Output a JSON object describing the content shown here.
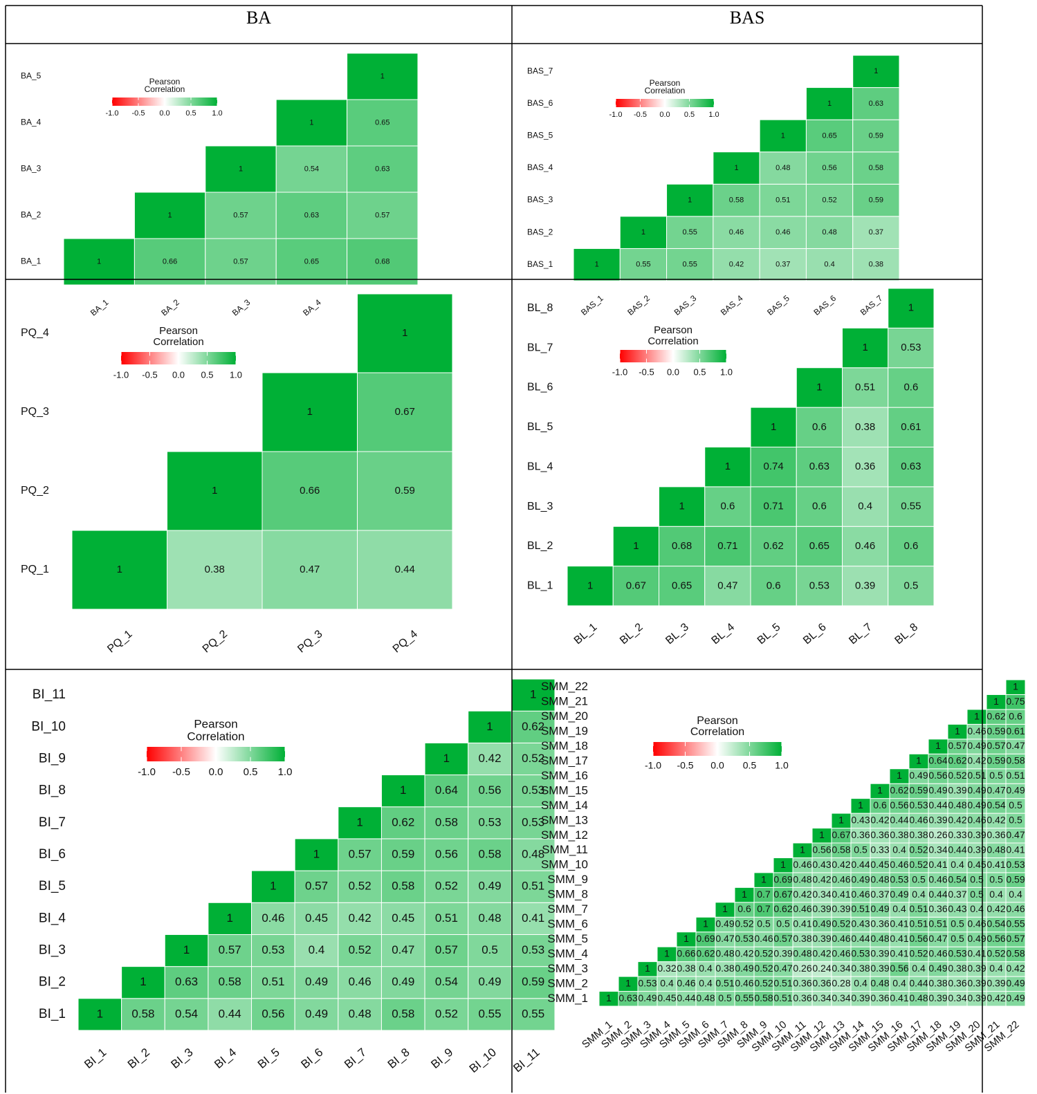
{
  "header": {
    "columns": [
      "BA",
      "BAS"
    ]
  },
  "chart_data": [
    {
      "type": "heatmap",
      "labels": [
        "BA_1",
        "BA_2",
        "BA_3",
        "BA_4",
        "BA_5"
      ],
      "values": [
        [
          1,
          0.66,
          0.57,
          0.65,
          0.68
        ],
        [
          1,
          0.57,
          0.63,
          0.57
        ],
        [
          1,
          0.54,
          0.63
        ],
        [
          1,
          0.65
        ],
        [
          1
        ]
      ],
      "legend_title": [
        "Pearson",
        "Correlation"
      ],
      "colorlim": [
        -1,
        1
      ],
      "colorscale": [
        "#ff0000",
        "#ffffff",
        "#00b036"
      ],
      "legend_ticks": [
        {
          "value": -1,
          "label": "-1.0"
        },
        -0.5,
        {
          "value": 0,
          "label": "0.0"
        },
        0.5,
        {
          "value": 1,
          "label": "1.0"
        }
      ]
    },
    {
      "type": "heatmap",
      "labels": [
        "BAS_1",
        "BAS_2",
        "BAS_3",
        "BAS_4",
        "BAS_5",
        "BAS_6",
        "BAS_7"
      ],
      "values": [
        [
          1,
          0.55,
          0.55,
          0.42,
          0.37,
          0.4,
          0.38
        ],
        [
          1,
          0.55,
          0.46,
          0.46,
          0.48,
          0.37
        ],
        [
          1,
          0.58,
          0.51,
          0.52,
          0.59
        ],
        [
          1,
          0.48,
          0.56,
          0.58
        ],
        [
          1,
          0.65,
          0.59
        ],
        [
          1,
          0.63
        ],
        [
          1
        ]
      ],
      "legend_title": [
        "Pearson",
        "Correlation"
      ],
      "colorlim": [
        -1,
        1
      ],
      "colorscale": [
        "#ff0000",
        "#ffffff",
        "#00b036"
      ],
      "legend_ticks": [
        {
          "value": -1,
          "label": "-1.0"
        },
        -0.5,
        {
          "value": 0,
          "label": "0.0"
        },
        0.5,
        {
          "value": 1,
          "label": "1.0"
        }
      ]
    },
    {
      "type": "heatmap",
      "labels": [
        "PQ_1",
        "PQ_2",
        "PQ_3",
        "PQ_4"
      ],
      "values": [
        [
          1,
          0.38,
          0.47,
          0.44
        ],
        [
          1,
          0.66,
          0.59
        ],
        [
          1,
          0.67
        ],
        [
          1
        ]
      ],
      "legend_title": [
        "Pearson",
        "Correlation"
      ],
      "colorlim": [
        -1,
        1
      ],
      "colorscale": [
        "#ff0000",
        "#ffffff",
        "#00b036"
      ],
      "legend_ticks": [
        {
          "value": -1,
          "label": "-1.0"
        },
        -0.5,
        {
          "value": 0,
          "label": "0.0"
        },
        0.5,
        {
          "value": 1,
          "label": "1.0"
        }
      ]
    },
    {
      "type": "heatmap",
      "labels": [
        "BL_1",
        "BL_2",
        "BL_3",
        "BL_4",
        "BL_5",
        "BL_6",
        "BL_7",
        "BL_8"
      ],
      "values": [
        [
          1,
          0.67,
          0.65,
          0.47,
          0.6,
          0.53,
          0.39,
          0.5
        ],
        [
          1,
          0.68,
          0.71,
          0.62,
          0.65,
          0.46,
          0.6
        ],
        [
          1,
          0.6,
          0.71,
          0.6,
          0.4,
          0.55
        ],
        [
          1,
          0.74,
          0.63,
          0.36,
          0.63
        ],
        [
          1,
          0.6,
          0.38,
          0.61
        ],
        [
          1,
          0.51,
          0.6
        ],
        [
          1,
          0.53
        ],
        [
          1
        ]
      ],
      "legend_title": [
        "Pearson",
        "Correlation"
      ],
      "colorlim": [
        -1,
        1
      ],
      "colorscale": [
        "#ff0000",
        "#ffffff",
        "#00b036"
      ],
      "legend_ticks": [
        {
          "value": -1,
          "label": "-1.0"
        },
        -0.5,
        {
          "value": 0,
          "label": "0.0"
        },
        0.5,
        {
          "value": 1,
          "label": "1.0"
        }
      ]
    },
    {
      "type": "heatmap",
      "labels": [
        "BI_1",
        "BI_2",
        "BI_3",
        "BI_4",
        "BI_5",
        "BI_6",
        "BI_7",
        "BI_8",
        "BI_9",
        "BI_10",
        "BI_11"
      ],
      "values": [
        [
          1,
          0.58,
          0.54,
          0.44,
          0.56,
          0.49,
          0.48,
          0.58,
          0.52,
          0.55,
          0.55
        ],
        [
          1,
          0.63,
          0.58,
          0.51,
          0.49,
          0.46,
          0.49,
          0.54,
          0.49,
          0.59
        ],
        [
          1,
          0.57,
          0.53,
          0.4,
          0.52,
          0.47,
          0.57,
          0.5,
          0.53
        ],
        [
          1,
          0.46,
          0.45,
          0.42,
          0.45,
          0.51,
          0.48,
          0.41
        ],
        [
          1,
          0.57,
          0.52,
          0.58,
          0.52,
          0.49,
          0.51
        ],
        [
          1,
          0.57,
          0.59,
          0.56,
          0.58,
          0.48
        ],
        [
          1,
          0.62,
          0.58,
          0.53,
          0.53
        ],
        [
          1,
          0.64,
          0.56,
          0.53
        ],
        [
          1,
          0.42,
          0.52
        ],
        [
          1,
          0.62
        ],
        [
          1
        ]
      ],
      "legend_title": [
        "Pearson",
        "Correlation"
      ],
      "colorlim": [
        -1,
        1
      ],
      "colorscale": [
        "#ff0000",
        "#ffffff",
        "#00b036"
      ],
      "legend_ticks": [
        {
          "value": -1,
          "label": "-1.0"
        },
        -0.5,
        {
          "value": 0,
          "label": "0.0"
        },
        0.5,
        {
          "value": 1,
          "label": "1.0"
        }
      ]
    },
    {
      "type": "heatmap",
      "labels": [
        "SMM_1",
        "SMM_2",
        "SMM_3",
        "SMM_4",
        "SMM_5",
        "SMM_6",
        "SMM_7",
        "SMM_8",
        "SMM_9",
        "SMM_10",
        "SMM_11",
        "SMM_12",
        "SMM_13",
        "SMM_14",
        "SMM_15",
        "SMM_16",
        "SMM_17",
        "SMM_18",
        "SMM_19",
        "SMM_20",
        "SMM_21",
        "SMM_22"
      ],
      "values": [
        [
          1,
          0.63,
          0.49,
          0.45,
          0.44,
          0.48,
          0.5,
          0.55,
          0.58,
          0.51,
          0.36,
          0.34,
          0.34,
          0.39,
          0.36,
          0.41,
          0.48,
          0.39,
          0.34,
          0.39,
          0.42,
          0.49
        ],
        [
          1,
          0.53,
          0.4,
          0.46,
          0.4,
          0.51,
          0.46,
          0.52,
          0.51,
          0.36,
          0.36,
          0.28,
          0.4,
          0.48,
          0.4,
          0.44,
          0.38,
          0.36,
          0.39,
          0.39,
          0.49
        ],
        [
          1,
          0.32,
          0.38,
          0.4,
          0.38,
          0.49,
          0.52,
          0.47,
          0.26,
          0.24,
          0.34,
          0.38,
          0.39,
          0.56,
          0.4,
          0.49,
          0.38,
          0.39,
          0.4,
          0.42
        ],
        [
          1,
          0.66,
          0.62,
          0.48,
          0.42,
          0.52,
          0.39,
          0.48,
          0.42,
          0.46,
          0.53,
          0.39,
          0.41,
          0.52,
          0.46,
          0.53,
          0.41,
          0.52,
          0.58
        ],
        [
          1,
          0.69,
          0.47,
          0.53,
          0.46,
          0.57,
          0.38,
          0.39,
          0.46,
          0.44,
          0.48,
          0.41,
          0.56,
          0.47,
          0.5,
          0.49,
          0.56,
          0.57
        ],
        [
          1,
          0.49,
          0.52,
          0.5,
          0.5,
          0.41,
          0.49,
          0.52,
          0.43,
          0.36,
          0.41,
          0.51,
          0.51,
          0.5,
          0.46,
          0.54,
          0.55
        ],
        [
          1,
          0.6,
          0.7,
          0.62,
          0.46,
          0.39,
          0.39,
          0.51,
          0.49,
          0.4,
          0.51,
          0.36,
          0.43,
          0.4,
          0.42,
          0.46
        ],
        [
          1,
          0.7,
          0.67,
          0.42,
          0.34,
          0.41,
          0.46,
          0.37,
          0.49,
          0.4,
          0.44,
          0.37,
          0.5,
          0.4,
          0.4
        ],
        [
          1,
          0.69,
          0.48,
          0.42,
          0.46,
          0.49,
          0.48,
          0.53,
          0.5,
          0.46,
          0.54,
          0.5,
          0.5,
          0.59
        ],
        [
          1,
          0.46,
          0.43,
          0.42,
          0.44,
          0.45,
          0.46,
          0.52,
          0.41,
          0.4,
          0.45,
          0.41,
          0.53
        ],
        [
          1,
          0.56,
          0.58,
          0.5,
          0.33,
          0.4,
          0.52,
          0.34,
          0.44,
          0.39,
          0.48,
          0.41
        ],
        [
          1,
          0.67,
          0.36,
          0.36,
          0.38,
          0.38,
          0.26,
          0.33,
          0.39,
          0.36,
          0.47
        ],
        [
          1,
          0.43,
          0.42,
          0.44,
          0.46,
          0.39,
          0.42,
          0.46,
          0.42,
          0.5
        ],
        [
          1,
          0.6,
          0.56,
          0.53,
          0.44,
          0.48,
          0.49,
          0.54,
          0.5
        ],
        [
          1,
          0.62,
          0.59,
          0.49,
          0.39,
          0.49,
          0.47,
          0.49
        ],
        [
          1,
          0.49,
          0.56,
          0.52,
          0.51,
          0.5,
          0.51
        ],
        [
          1,
          0.64,
          0.62,
          0.42,
          0.59,
          0.58
        ],
        [
          1,
          0.57,
          0.49,
          0.57,
          0.47
        ],
        [
          1,
          0.46,
          0.59,
          0.61
        ],
        [
          1,
          0.62,
          0.6
        ],
        [
          1,
          0.75
        ],
        [
          1
        ]
      ],
      "legend_title": [
        "Pearson",
        "Correlation"
      ],
      "colorlim": [
        -1,
        1
      ],
      "colorscale": [
        "#ff0000",
        "#ffffff",
        "#00b036"
      ],
      "legend_ticks": [
        {
          "value": -1,
          "label": "-1.0"
        },
        -0.5,
        {
          "value": 0,
          "label": "0.0"
        },
        0.5,
        {
          "value": 1,
          "label": "1.0"
        }
      ]
    }
  ]
}
